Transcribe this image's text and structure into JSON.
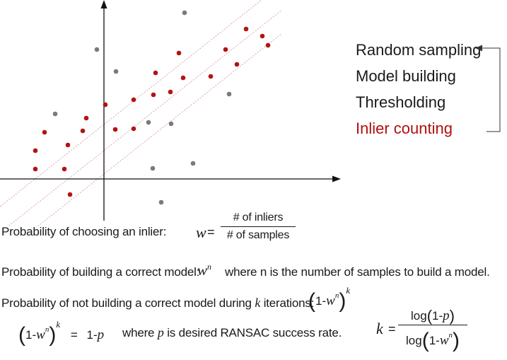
{
  "steps": {
    "items": [
      "Random sampling",
      "Model building",
      "Thresholding",
      "Inlier counting"
    ],
    "colors": [
      "#1a1a1a",
      "#1a1a1a",
      "#1a1a1a",
      "#b01010"
    ]
  },
  "colors": {
    "inlier": "#b51212",
    "outlier": "#7a7a7a",
    "band": "#d89aa8",
    "axis": "#111111",
    "highlight": "#b01010"
  },
  "plot": {
    "inlier_points": [
      [
        -48,
        -22
      ],
      [
        -97,
        14
      ],
      [
        -97,
        40
      ],
      [
        -84,
        66
      ],
      [
        -56,
        14
      ],
      [
        -51,
        48
      ],
      [
        -30,
        68
      ],
      [
        -25,
        86
      ],
      [
        2,
        105
      ],
      [
        16,
        70
      ],
      [
        42,
        71
      ],
      [
        42,
        112
      ],
      [
        70,
        119
      ],
      [
        73,
        150
      ],
      [
        94,
        123
      ],
      [
        106,
        178
      ],
      [
        112,
        143
      ],
      [
        151,
        145
      ],
      [
        172,
        183
      ],
      [
        188,
        162
      ],
      [
        201,
        212
      ],
      [
        224,
        202
      ],
      [
        232,
        189
      ]
    ],
    "outlier_points": [
      [
        -69,
        92
      ],
      [
        -10,
        183
      ],
      [
        17,
        152
      ],
      [
        63,
        80
      ],
      [
        69,
        15
      ],
      [
        81,
        -33
      ],
      [
        95,
        78
      ],
      [
        114,
        235
      ],
      [
        126,
        22
      ],
      [
        177,
        120
      ]
    ]
  },
  "formulas": {
    "p_inlier_label": "Probability of choosing an inlier:",
    "w": "w",
    "w_num": "# of inliers",
    "w_den": "# of samples",
    "p_model_label": "Probability of building a correct model:",
    "wn_w": "w",
    "wn_n": "n",
    "p_model_note": "where n is the number of samples to build a model.",
    "p_fail_label_pre": "Probability of not building a correct model during",
    "p_fail_k": "k",
    "p_fail_label_post": "iterations:",
    "one_minus": "1-",
    "w2": "w",
    "n2": "n",
    "k_exp": "k",
    "eq_rhs_pre": "1-",
    "eq_rhs_p": "p",
    "eq_note_pre": "where",
    "eq_note_p": "p",
    "eq_note_post": "is desired RANSAC success rate.",
    "k_lhs": "k",
    "k_num_log": "log",
    "k_num_inner": "1-",
    "k_num_p": "p",
    "k_den_log": "log",
    "k_den_inner": "1-",
    "k_den_w": "w",
    "k_den_n": "n"
  }
}
